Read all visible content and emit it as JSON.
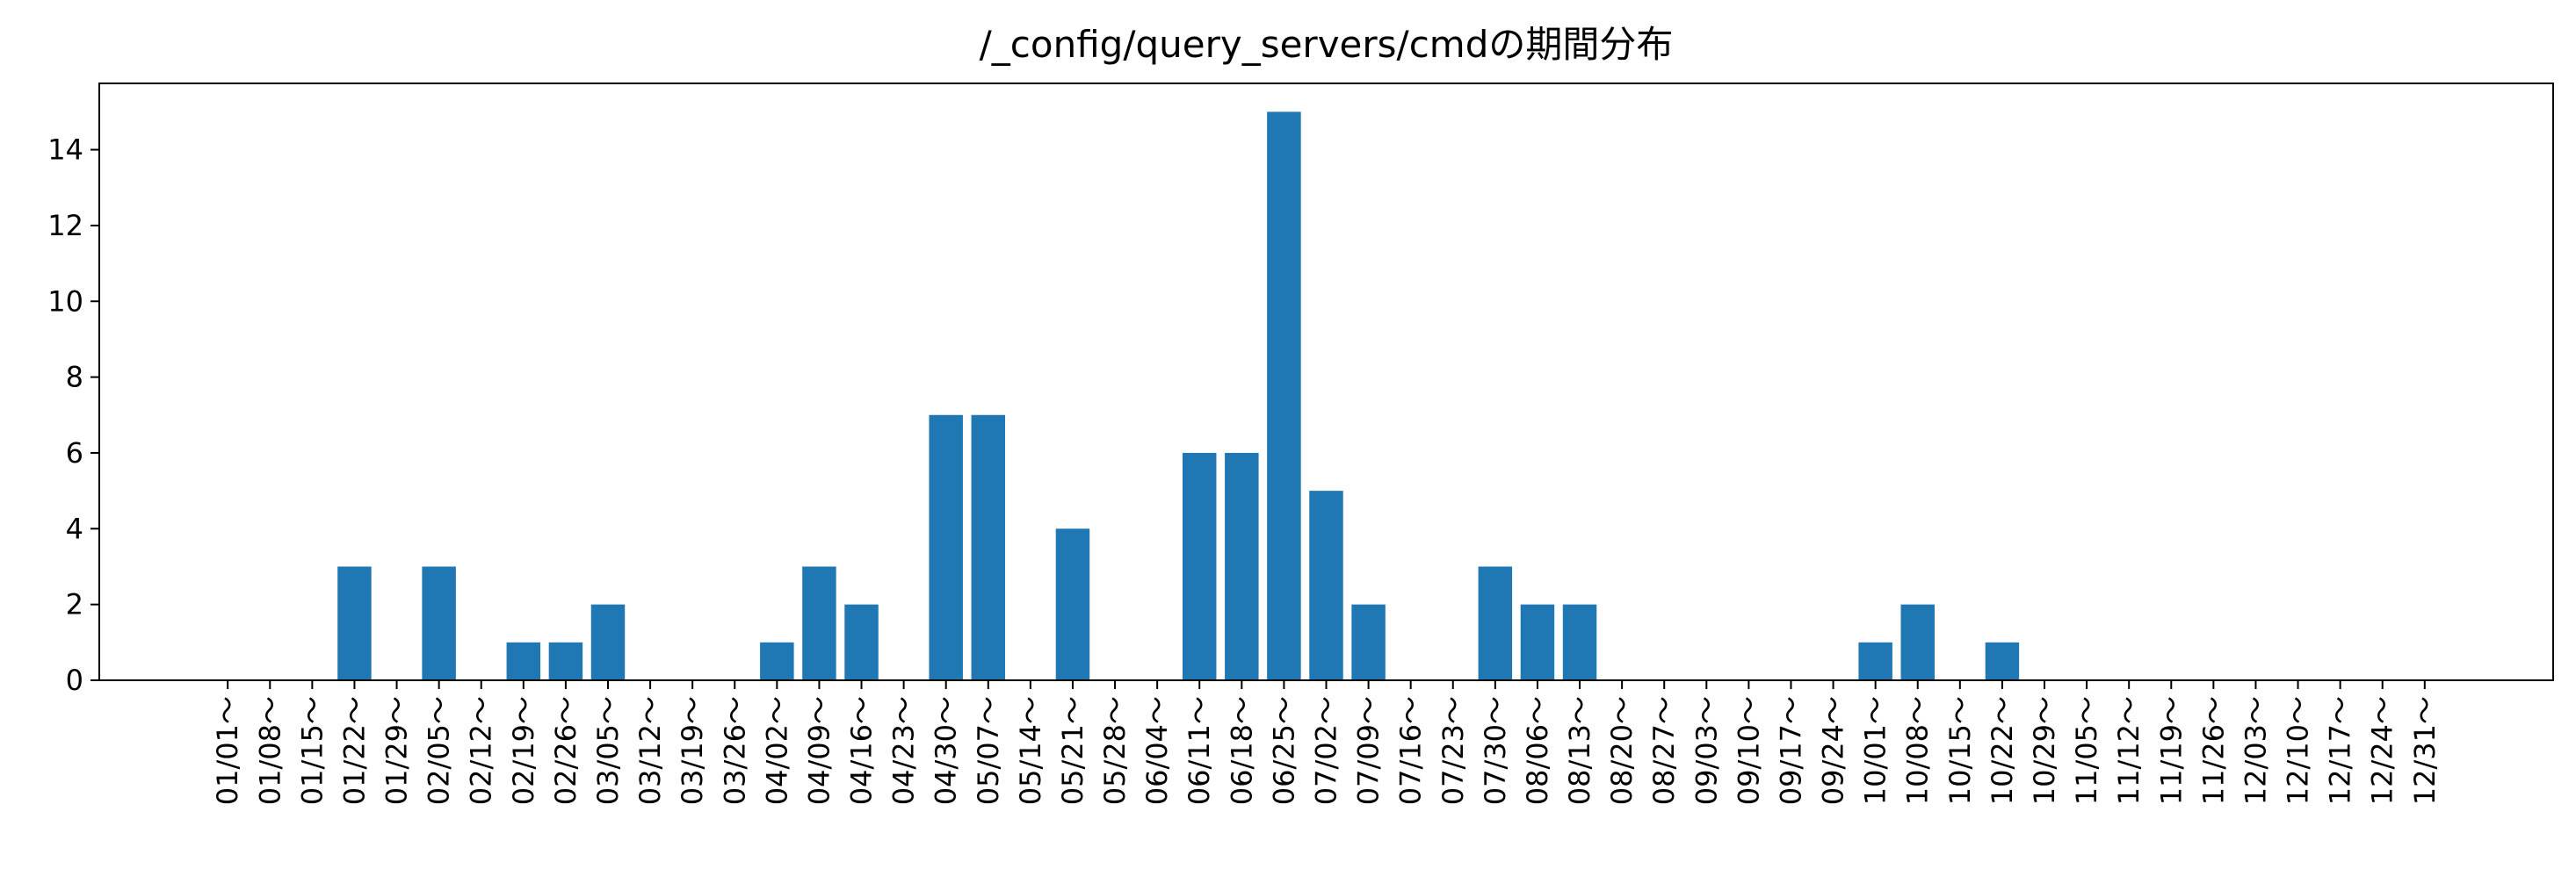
{
  "chart_data": {
    "type": "bar",
    "title": "/_config/query_servers/cmdの期間分布",
    "xlabel": "",
    "ylabel": "",
    "ylim": [
      0,
      15.75
    ],
    "yticks": [
      0,
      2,
      4,
      6,
      8,
      10,
      12,
      14
    ],
    "bar_color": "#1f77b4",
    "grid": false,
    "legend": "none",
    "categories": [
      "01/01～",
      "01/08～",
      "01/15～",
      "01/22～",
      "01/29～",
      "02/05～",
      "02/12～",
      "02/19～",
      "02/26～",
      "03/05～",
      "03/12～",
      "03/19～",
      "03/26～",
      "04/02～",
      "04/09～",
      "04/16～",
      "04/23～",
      "04/30～",
      "05/07～",
      "05/14～",
      "05/21～",
      "05/28～",
      "06/04～",
      "06/11～",
      "06/18～",
      "06/25～",
      "07/02～",
      "07/09～",
      "07/16～",
      "07/23～",
      "07/30～",
      "08/06～",
      "08/13～",
      "08/20～",
      "08/27～",
      "09/03～",
      "09/10～",
      "09/17～",
      "09/24～",
      "10/01～",
      "10/08～",
      "10/15～",
      "10/22～",
      "10/29～",
      "11/05～",
      "11/12～",
      "11/19～",
      "11/26～",
      "12/03～",
      "12/10～",
      "12/17～",
      "12/24～",
      "12/31～"
    ],
    "values": [
      0,
      0,
      0,
      3,
      0,
      3,
      0,
      1,
      1,
      2,
      0,
      0,
      0,
      1,
      3,
      2,
      0,
      7,
      7,
      0,
      4,
      0,
      0,
      6,
      6,
      15,
      5,
      2,
      0,
      0,
      3,
      2,
      2,
      0,
      0,
      0,
      0,
      0,
      0,
      1,
      2,
      0,
      1,
      0,
      0,
      0,
      0,
      0,
      0,
      0,
      0,
      0,
      0
    ]
  }
}
